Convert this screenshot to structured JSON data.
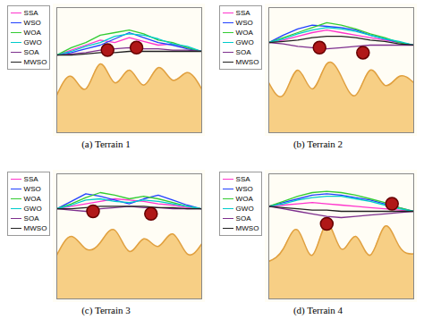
{
  "chart_data": [
    {
      "type": "line",
      "title": "(a) Terrain 1",
      "tick_labels": false,
      "xlim": [
        0,
        10
      ],
      "ylim": [
        0,
        100
      ],
      "x": [
        0,
        1,
        2,
        3,
        4,
        5,
        6,
        7,
        8,
        9,
        10
      ],
      "surface": [
        30,
        45,
        35,
        55,
        40,
        50,
        38,
        52,
        42,
        48,
        35
      ],
      "obstacles": [
        {
          "x": 3.5,
          "y": 66
        },
        {
          "x": 5.5,
          "y": 68
        }
      ],
      "series": [
        {
          "name": "SSA",
          "color": "#ff33cc",
          "values": [
            62,
            66,
            70,
            74,
            72,
            76,
            73,
            70,
            71,
            68,
            65
          ]
        },
        {
          "name": "WSO",
          "color": "#2040ff",
          "values": [
            62,
            64,
            67,
            70,
            75,
            80,
            76,
            72,
            70,
            67,
            65
          ]
        },
        {
          "name": "WOA",
          "color": "#33cc33",
          "values": [
            62,
            68,
            72,
            78,
            80,
            82,
            79,
            74,
            72,
            68,
            65
          ]
        },
        {
          "name": "GWO",
          "color": "#00cccc",
          "values": [
            62,
            65,
            69,
            72,
            77,
            79,
            78,
            75,
            71,
            69,
            65
          ]
        },
        {
          "name": "SOA",
          "color": "#7e2f8e",
          "values": [
            62,
            63,
            64,
            66,
            67,
            68,
            67,
            67,
            66,
            66,
            65
          ]
        },
        {
          "name": "MWSO",
          "color": "#202020",
          "values": [
            62,
            62,
            63,
            64,
            64,
            65,
            65,
            65,
            65,
            65,
            65
          ]
        }
      ]
    },
    {
      "type": "line",
      "title": "(b) Terrain 2",
      "tick_labels": false,
      "xlim": [
        0,
        10
      ],
      "ylim": [
        0,
        100
      ],
      "x": [
        0,
        1,
        2,
        3,
        4,
        5,
        6,
        7,
        8,
        9,
        10
      ],
      "surface": [
        40,
        30,
        50,
        35,
        55,
        45,
        30,
        50,
        38,
        45,
        40
      ],
      "obstacles": [
        {
          "x": 3.5,
          "y": 68
        },
        {
          "x": 6.5,
          "y": 64
        }
      ],
      "series": [
        {
          "name": "SSA",
          "color": "#ff33cc",
          "values": [
            72,
            74,
            77,
            80,
            82,
            80,
            78,
            76,
            74,
            72,
            70
          ]
        },
        {
          "name": "WSO",
          "color": "#2040ff",
          "values": [
            72,
            78,
            83,
            86,
            85,
            84,
            82,
            78,
            75,
            72,
            70
          ]
        },
        {
          "name": "WOA",
          "color": "#33cc33",
          "values": [
            72,
            76,
            80,
            84,
            88,
            86,
            83,
            79,
            76,
            72,
            70
          ]
        },
        {
          "name": "GWO",
          "color": "#00cccc",
          "values": [
            72,
            75,
            79,
            82,
            84,
            83,
            81,
            78,
            75,
            73,
            70
          ]
        },
        {
          "name": "SOA",
          "color": "#7e2f8e",
          "values": [
            72,
            71,
            69,
            68,
            67,
            68,
            69,
            70,
            70,
            70,
            70
          ]
        },
        {
          "name": "MWSO",
          "color": "#202020",
          "values": [
            72,
            73,
            74,
            76,
            77,
            77,
            76,
            74,
            73,
            71,
            70
          ]
        }
      ]
    },
    {
      "type": "line",
      "title": "(c) Terrain 3",
      "tick_labels": false,
      "xlim": [
        0,
        10
      ],
      "ylim": [
        0,
        100
      ],
      "x": [
        0,
        1,
        2,
        3,
        4,
        5,
        6,
        7,
        8,
        9,
        10
      ],
      "surface": [
        35,
        50,
        40,
        45,
        55,
        38,
        48,
        42,
        52,
        36,
        44
      ],
      "obstacles": [
        {
          "x": 2.5,
          "y": 70
        },
        {
          "x": 6.5,
          "y": 68
        }
      ],
      "series": [
        {
          "name": "SSA",
          "color": "#ff33cc",
          "values": [
            72,
            74,
            76,
            78,
            80,
            79,
            78,
            76,
            75,
            73,
            72
          ]
        },
        {
          "name": "WSO",
          "color": "#2040ff",
          "values": [
            72,
            78,
            84,
            82,
            79,
            76,
            80,
            83,
            79,
            75,
            72
          ]
        },
        {
          "name": "WOA",
          "color": "#33cc33",
          "values": [
            72,
            76,
            81,
            85,
            83,
            80,
            82,
            80,
            77,
            74,
            72
          ]
        },
        {
          "name": "GWO",
          "color": "#00cccc",
          "values": [
            72,
            75,
            79,
            80,
            78,
            77,
            79,
            78,
            76,
            74,
            72
          ]
        },
        {
          "name": "SOA",
          "color": "#7e2f8e",
          "values": [
            72,
            71,
            70,
            72,
            73,
            74,
            73,
            73,
            72,
            72,
            72
          ]
        },
        {
          "name": "MWSO",
          "color": "#202020",
          "values": [
            72,
            72,
            73,
            74,
            74,
            74,
            74,
            73,
            73,
            72,
            72
          ]
        }
      ]
    },
    {
      "type": "line",
      "title": "(d) Terrain 4",
      "tick_labels": false,
      "xlim": [
        0,
        10
      ],
      "ylim": [
        0,
        100
      ],
      "x": [
        0,
        1,
        2,
        3,
        4,
        5,
        6,
        7,
        8,
        9,
        10
      ],
      "surface": [
        30,
        40,
        55,
        35,
        60,
        40,
        50,
        35,
        58,
        42,
        36
      ],
      "obstacles": [
        {
          "x": 4,
          "y": 60
        },
        {
          "x": 8.5,
          "y": 76
        }
      ],
      "series": [
        {
          "name": "SSA",
          "color": "#ff33cc",
          "values": [
            74,
            75,
            76,
            77,
            76,
            75,
            74,
            73,
            72,
            71,
            70
          ]
        },
        {
          "name": "WSO",
          "color": "#2040ff",
          "values": [
            74,
            77,
            80,
            83,
            84,
            83,
            81,
            79,
            76,
            73,
            70
          ]
        },
        {
          "name": "WOA",
          "color": "#33cc33",
          "values": [
            74,
            78,
            82,
            85,
            86,
            85,
            83,
            80,
            77,
            73,
            70
          ]
        },
        {
          "name": "GWO",
          "color": "#00cccc",
          "values": [
            74,
            76,
            79,
            81,
            82,
            82,
            80,
            78,
            75,
            72,
            70
          ]
        },
        {
          "name": "SOA",
          "color": "#7e2f8e",
          "values": [
            74,
            72,
            70,
            68,
            66,
            65,
            66,
            67,
            68,
            69,
            70
          ]
        },
        {
          "name": "MWSO",
          "color": "#202020",
          "values": [
            74,
            73,
            72,
            71,
            71,
            70,
            70,
            70,
            70,
            70,
            70
          ]
        }
      ]
    }
  ]
}
